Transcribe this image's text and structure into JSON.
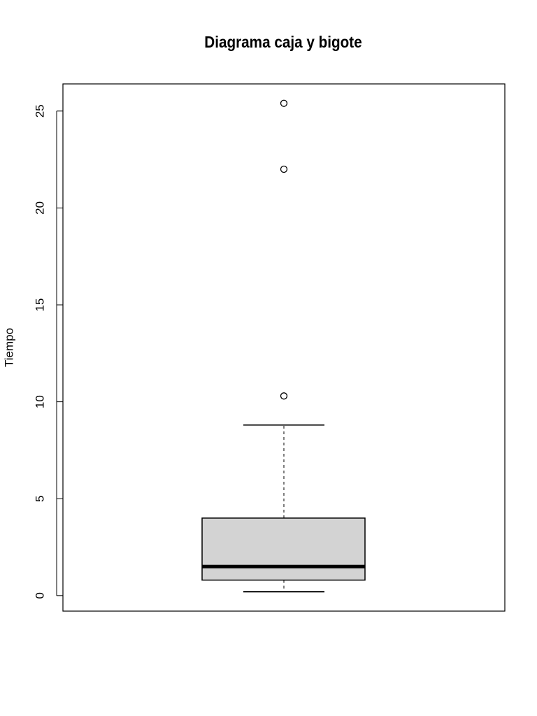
{
  "chart_data": {
    "type": "box",
    "title": "Diagrama caja y bigote",
    "ylabel": "Tiempo",
    "ylim": [
      -0.8,
      26.4
    ],
    "yticks": [
      0,
      5,
      10,
      15,
      20,
      25
    ],
    "box": {
      "min": 0.2,
      "q1": 0.8,
      "median": 1.5,
      "q3": 4.0,
      "max": 8.8,
      "outliers": [
        10.3,
        22.0,
        25.4
      ]
    },
    "color": "#d3d3d3"
  }
}
